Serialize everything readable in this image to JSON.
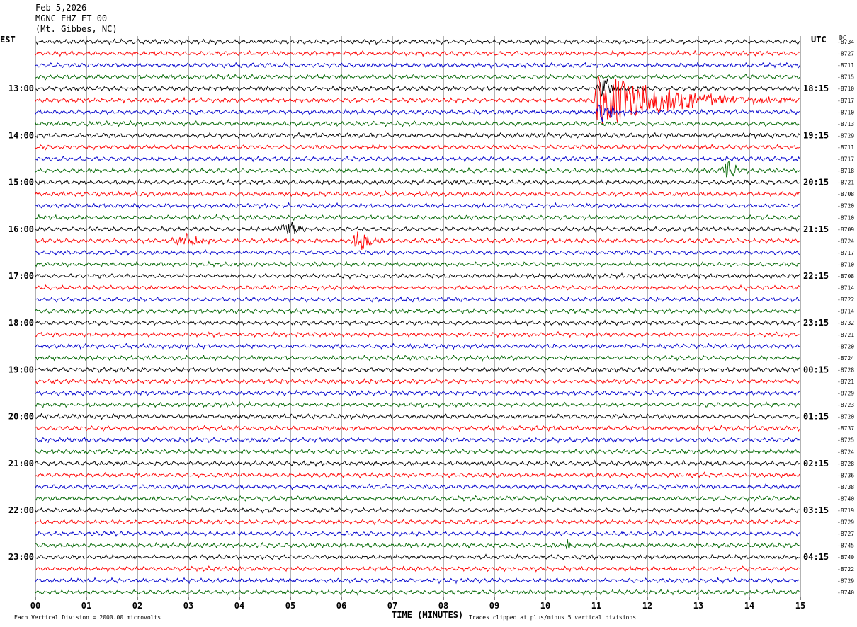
{
  "header": {
    "date": "Feb 5,2026",
    "station": "MGNC EHZ ET 00",
    "location": "(Mt. Gibbes, NC)"
  },
  "labels": {
    "left_timezone": "EST",
    "right_timezone": "UTC",
    "dc_header": "DC",
    "x_axis_label": "TIME (MINUTES)",
    "scale_note": "Each Vertical Division = 2000.00 microvolts",
    "clip_note": "Traces clipped at plus/minus 5 vertical divisions"
  },
  "colors": {
    "trace_cycle": [
      "#000000",
      "#ff0000",
      "#0000cc",
      "#006600"
    ],
    "grid": "#000000"
  },
  "chart_data": {
    "type": "line",
    "xlabel": "TIME (MINUTES)",
    "xlim": [
      0,
      15
    ],
    "x_ticks": [
      "00",
      "01",
      "02",
      "03",
      "04",
      "05",
      "06",
      "07",
      "08",
      "09",
      "10",
      "11",
      "12",
      "13",
      "14",
      "15"
    ],
    "trace_count": 48,
    "trace_interval_minutes": 15,
    "left_hour_labels": [
      "13:00",
      "14:00",
      "15:00",
      "16:00",
      "17:00",
      "18:00",
      "19:00",
      "20:00",
      "21:00",
      "22:00",
      "23:00"
    ],
    "right_hour_labels": [
      "18:15",
      "19:15",
      "20:15",
      "21:15",
      "22:15",
      "23:15",
      "00:15",
      "01:15",
      "02:15",
      "03:15",
      "04:15"
    ],
    "first_labeled_trace": 4,
    "dc_offsets": [
      "-8734",
      "-8727",
      "-8711",
      "-8715",
      "-8710",
      "-8717",
      "-8710",
      "-8713",
      "-8729",
      "-8711",
      "-8717",
      "-8718",
      "-8721",
      "-8708",
      "-8720",
      "-8710",
      "-8709",
      "-8724",
      "-8717",
      "-8710",
      "-8708",
      "-8714",
      "-8722",
      "-8714",
      "-8732",
      "-8721",
      "-8720",
      "-8724",
      "-8728",
      "-8721",
      "-8729",
      "-8723",
      "-8720",
      "-8737",
      "-8725",
      "-8724",
      "-8728",
      "-8736",
      "-8738",
      "-8740",
      "-8719",
      "-8729",
      "-8727",
      "-8745",
      "-8740",
      "-8722",
      "-8729",
      "-8740"
    ],
    "events": [
      {
        "trace": 5,
        "start_min": 10.9,
        "peak_min": 11.05,
        "end_min": 15.0,
        "amplitude": 1.0
      },
      {
        "trace": 4,
        "start_min": 10.95,
        "peak_min": 11.1,
        "end_min": 11.6,
        "amplitude": 0.6
      },
      {
        "trace": 6,
        "start_min": 10.95,
        "peak_min": 11.15,
        "end_min": 11.6,
        "amplitude": 0.5
      },
      {
        "trace": 11,
        "start_min": 13.4,
        "peak_min": 13.55,
        "end_min": 14.0,
        "amplitude": 0.45
      },
      {
        "trace": 16,
        "start_min": 4.6,
        "peak_min": 5.1,
        "end_min": 5.4,
        "amplitude": 0.25
      },
      {
        "trace": 17,
        "start_min": 2.6,
        "peak_min": 3.0,
        "end_min": 3.6,
        "amplitude": 0.25
      },
      {
        "trace": 17,
        "start_min": 6.1,
        "peak_min": 6.35,
        "end_min": 7.0,
        "amplitude": 0.4
      },
      {
        "trace": 43,
        "start_min": 10.35,
        "peak_min": 10.45,
        "end_min": 10.6,
        "amplitude": 0.25
      }
    ]
  }
}
